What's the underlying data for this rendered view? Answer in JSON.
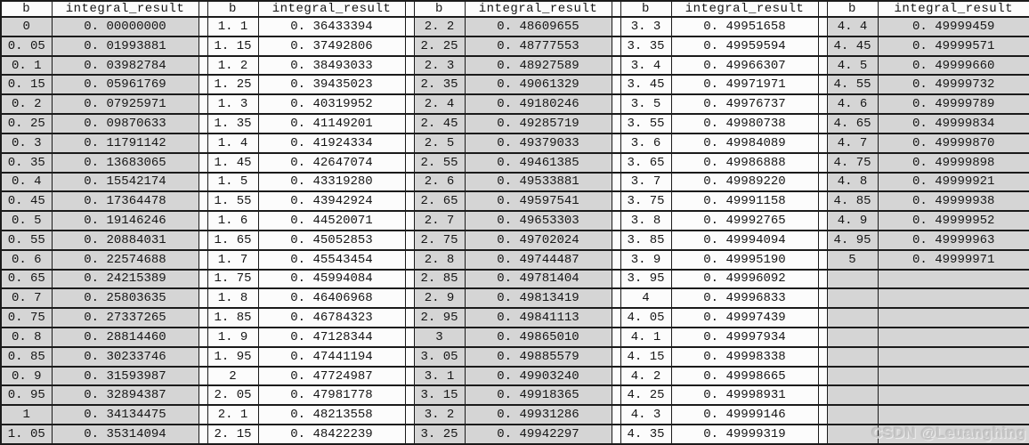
{
  "table": {
    "column_headers": [
      "b",
      "integral_result"
    ],
    "row_count": 22,
    "group_count": 5,
    "groups": [
      {
        "rows": [
          [
            "0",
            "0. 00000000"
          ],
          [
            "0. 05",
            "0. 01993881"
          ],
          [
            "0. 1",
            "0. 03982784"
          ],
          [
            "0. 15",
            "0. 05961769"
          ],
          [
            "0. 2",
            "0. 07925971"
          ],
          [
            "0. 25",
            "0. 09870633"
          ],
          [
            "0. 3",
            "0. 11791142"
          ],
          [
            "0. 35",
            "0. 13683065"
          ],
          [
            "0. 4",
            "0. 15542174"
          ],
          [
            "0. 45",
            "0. 17364478"
          ],
          [
            "0. 5",
            "0. 19146246"
          ],
          [
            "0. 55",
            "0. 20884031"
          ],
          [
            "0. 6",
            "0. 22574688"
          ],
          [
            "0. 65",
            "0. 24215389"
          ],
          [
            "0. 7",
            "0. 25803635"
          ],
          [
            "0. 75",
            "0. 27337265"
          ],
          [
            "0. 8",
            "0. 28814460"
          ],
          [
            "0. 85",
            "0. 30233746"
          ],
          [
            "0. 9",
            "0. 31593987"
          ],
          [
            "0. 95",
            "0. 32894387"
          ],
          [
            "1",
            "0. 34134475"
          ],
          [
            "1. 05",
            "0. 35314094"
          ]
        ]
      },
      {
        "rows": [
          [
            "1. 1",
            "0. 36433394"
          ],
          [
            "1. 15",
            "0. 37492806"
          ],
          [
            "1. 2",
            "0. 38493033"
          ],
          [
            "1. 25",
            "0. 39435023"
          ],
          [
            "1. 3",
            "0. 40319952"
          ],
          [
            "1. 35",
            "0. 41149201"
          ],
          [
            "1. 4",
            "0. 41924334"
          ],
          [
            "1. 45",
            "0. 42647074"
          ],
          [
            "1. 5",
            "0. 43319280"
          ],
          [
            "1. 55",
            "0. 43942924"
          ],
          [
            "1. 6",
            "0. 44520071"
          ],
          [
            "1. 65",
            "0. 45052853"
          ],
          [
            "1. 7",
            "0. 45543454"
          ],
          [
            "1. 75",
            "0. 45994084"
          ],
          [
            "1. 8",
            "0. 46406968"
          ],
          [
            "1. 85",
            "0. 46784323"
          ],
          [
            "1. 9",
            "0. 47128344"
          ],
          [
            "1. 95",
            "0. 47441194"
          ],
          [
            "2",
            "0. 47724987"
          ],
          [
            "2. 05",
            "0. 47981778"
          ],
          [
            "2. 1",
            "0. 48213558"
          ],
          [
            "2. 15",
            "0. 48422239"
          ]
        ]
      },
      {
        "rows": [
          [
            "2. 2",
            "0. 48609655"
          ],
          [
            "2. 25",
            "0. 48777553"
          ],
          [
            "2. 3",
            "0. 48927589"
          ],
          [
            "2. 35",
            "0. 49061329"
          ],
          [
            "2. 4",
            "0. 49180246"
          ],
          [
            "2. 45",
            "0. 49285719"
          ],
          [
            "2. 5",
            "0. 49379033"
          ],
          [
            "2. 55",
            "0. 49461385"
          ],
          [
            "2. 6",
            "0. 49533881"
          ],
          [
            "2. 65",
            "0. 49597541"
          ],
          [
            "2. 7",
            "0. 49653303"
          ],
          [
            "2. 75",
            "0. 49702024"
          ],
          [
            "2. 8",
            "0. 49744487"
          ],
          [
            "2. 85",
            "0. 49781404"
          ],
          [
            "2. 9",
            "0. 49813419"
          ],
          [
            "2. 95",
            "0. 49841113"
          ],
          [
            "3",
            "0. 49865010"
          ],
          [
            "3. 05",
            "0. 49885579"
          ],
          [
            "3. 1",
            "0. 49903240"
          ],
          [
            "3. 15",
            "0. 49918365"
          ],
          [
            "3. 2",
            "0. 49931286"
          ],
          [
            "3. 25",
            "0. 49942297"
          ]
        ]
      },
      {
        "rows": [
          [
            "3. 3",
            "0. 49951658"
          ],
          [
            "3. 35",
            "0. 49959594"
          ],
          [
            "3. 4",
            "0. 49966307"
          ],
          [
            "3. 45",
            "0. 49971971"
          ],
          [
            "3. 5",
            "0. 49976737"
          ],
          [
            "3. 55",
            "0. 49980738"
          ],
          [
            "3. 6",
            "0. 49984089"
          ],
          [
            "3. 65",
            "0. 49986888"
          ],
          [
            "3. 7",
            "0. 49989220"
          ],
          [
            "3. 75",
            "0. 49991158"
          ],
          [
            "3. 8",
            "0. 49992765"
          ],
          [
            "3. 85",
            "0. 49994094"
          ],
          [
            "3. 9",
            "0. 49995190"
          ],
          [
            "3. 95",
            "0. 49996092"
          ],
          [
            "4",
            "0. 49996833"
          ],
          [
            "4. 05",
            "0. 49997439"
          ],
          [
            "4. 1",
            "0. 49997934"
          ],
          [
            "4. 15",
            "0. 49998338"
          ],
          [
            "4. 2",
            "0. 49998665"
          ],
          [
            "4. 25",
            "0. 49998931"
          ],
          [
            "4. 3",
            "0. 49999146"
          ],
          [
            "4. 35",
            "0. 49999319"
          ]
        ]
      },
      {
        "rows": [
          [
            "4. 4",
            "0. 49999459"
          ],
          [
            "4. 45",
            "0. 49999571"
          ],
          [
            "4. 5",
            "0. 49999660"
          ],
          [
            "4. 55",
            "0. 49999732"
          ],
          [
            "4. 6",
            "0. 49999789"
          ],
          [
            "4. 65",
            "0. 49999834"
          ],
          [
            "4. 7",
            "0. 49999870"
          ],
          [
            "4. 75",
            "0. 49999898"
          ],
          [
            "4. 8",
            "0. 49999921"
          ],
          [
            "4. 85",
            "0. 49999938"
          ],
          [
            "4. 9",
            "0. 49999952"
          ],
          [
            "4. 95",
            "0. 49999963"
          ],
          [
            "5",
            "0. 49999971"
          ]
        ]
      }
    ]
  },
  "watermark": "CSDN @Leuanghing",
  "colors": {
    "cell_shade": "#d5d5d5",
    "cell_light": "#fcfcfc",
    "grid_line": "#1b1b1b",
    "watermark_text": "#c8c8c8"
  }
}
